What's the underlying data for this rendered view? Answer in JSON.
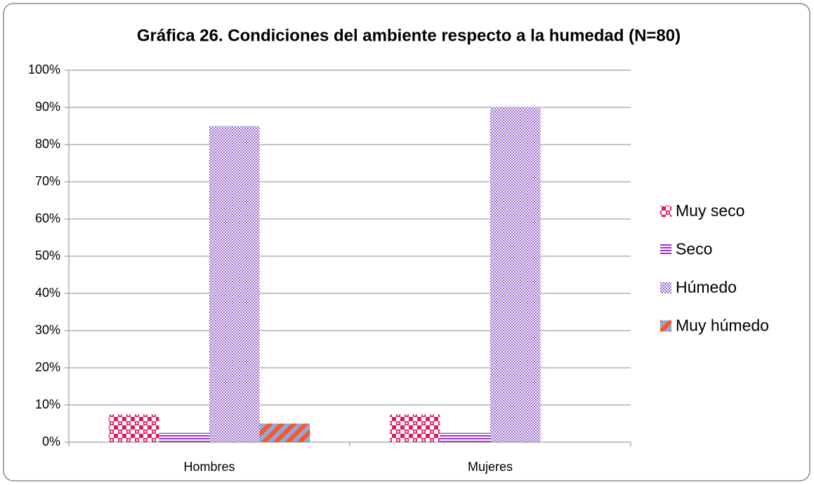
{
  "chart_data": {
    "type": "bar",
    "title": "Gráfica 26. Condiciones del ambiente respecto a la humedad (N=80)",
    "categories": [
      "Hombres",
      "Mujeres"
    ],
    "series": [
      {
        "name": "Muy seco",
        "color": "#e0185f",
        "values": [
          7.5,
          7.5
        ]
      },
      {
        "name": "Seco",
        "color": "#9933cc",
        "values": [
          2.5,
          2.5
        ]
      },
      {
        "name": "Húmedo",
        "color": "#9966cc",
        "values": [
          85,
          90
        ]
      },
      {
        "name": "Muy húmedo",
        "color": "#ff5522",
        "values": [
          5,
          0
        ]
      }
    ],
    "ylim": [
      0,
      100
    ],
    "yticks": [
      {
        "value": 0,
        "label": "0%"
      },
      {
        "value": 10,
        "label": "10%"
      },
      {
        "value": 20,
        "label": "20%"
      },
      {
        "value": 30,
        "label": "30%"
      },
      {
        "value": 40,
        "label": "40%"
      },
      {
        "value": 50,
        "label": "50%"
      },
      {
        "value": 60,
        "label": "60%"
      },
      {
        "value": 70,
        "label": "70%"
      },
      {
        "value": 80,
        "label": "80%"
      },
      {
        "value": 90,
        "label": "90%"
      },
      {
        "value": 100,
        "label": "100%"
      }
    ],
    "grid": true,
    "legend": "right"
  }
}
